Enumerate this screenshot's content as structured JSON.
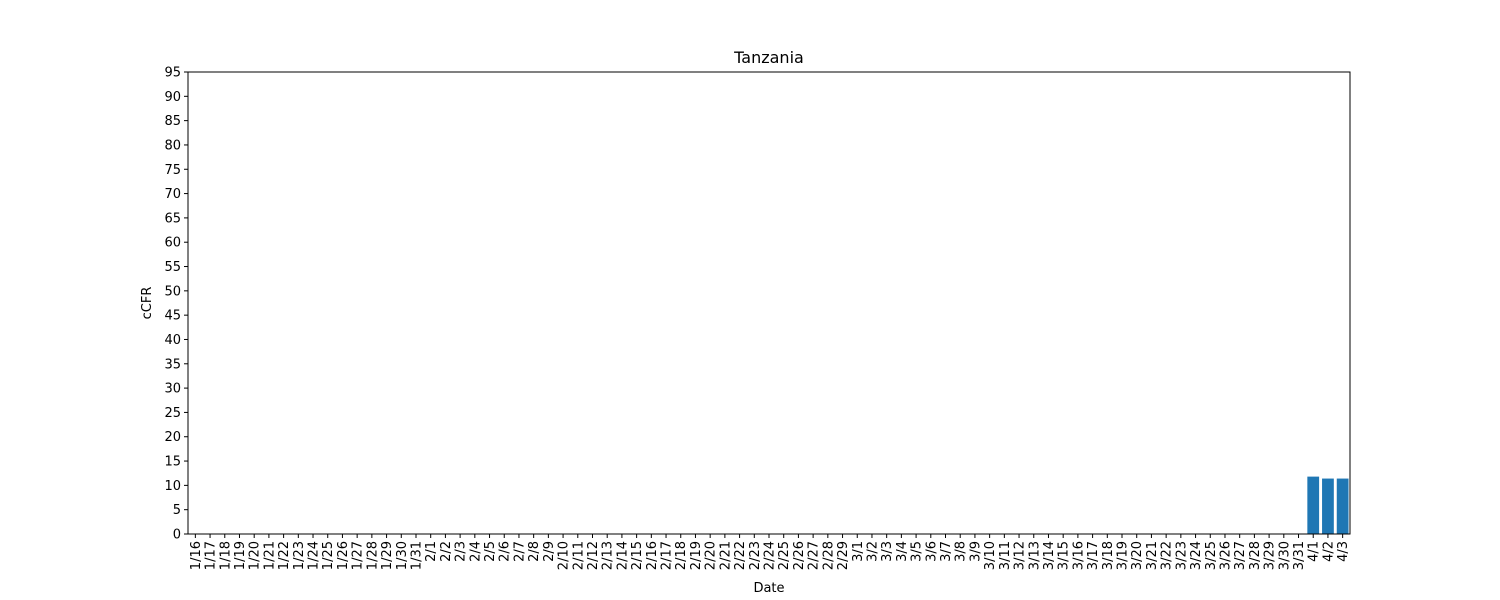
{
  "chart_data": {
    "type": "bar",
    "title": "Tanzania",
    "xlabel": "Date",
    "ylabel": "cCFR",
    "ylim": [
      0,
      95
    ],
    "yticks": [
      0,
      5,
      10,
      15,
      20,
      25,
      30,
      35,
      40,
      45,
      50,
      55,
      60,
      65,
      70,
      75,
      80,
      85,
      90,
      95
    ],
    "grid": false,
    "bar_color": "#1f77b4",
    "categories": [
      "1/16",
      "1/17",
      "1/18",
      "1/19",
      "1/20",
      "1/21",
      "1/22",
      "1/23",
      "1/24",
      "1/25",
      "1/26",
      "1/27",
      "1/28",
      "1/29",
      "1/30",
      "1/31",
      "2/1",
      "2/2",
      "2/3",
      "2/4",
      "2/5",
      "2/6",
      "2/7",
      "2/8",
      "2/9",
      "2/10",
      "2/11",
      "2/12",
      "2/13",
      "2/14",
      "2/15",
      "2/16",
      "2/17",
      "2/18",
      "2/19",
      "2/20",
      "2/21",
      "2/22",
      "2/23",
      "2/24",
      "2/25",
      "2/26",
      "2/27",
      "2/28",
      "2/29",
      "3/1",
      "3/2",
      "3/3",
      "3/4",
      "3/5",
      "3/6",
      "3/7",
      "3/8",
      "3/9",
      "3/10",
      "3/11",
      "3/12",
      "3/13",
      "3/14",
      "3/15",
      "3/16",
      "3/17",
      "3/18",
      "3/19",
      "3/20",
      "3/21",
      "3/22",
      "3/23",
      "3/24",
      "3/25",
      "3/26",
      "3/27",
      "3/28",
      "3/29",
      "3/30",
      "3/31",
      "4/1",
      "4/2",
      "4/3"
    ],
    "values": [
      0,
      0,
      0,
      0,
      0,
      0,
      0,
      0,
      0,
      0,
      0,
      0,
      0,
      0,
      0,
      0,
      0,
      0,
      0,
      0,
      0,
      0,
      0,
      0,
      0,
      0,
      0,
      0,
      0,
      0,
      0,
      0,
      0,
      0,
      0,
      0,
      0,
      0,
      0,
      0,
      0,
      0,
      0,
      0,
      0,
      0,
      0,
      0,
      0,
      0,
      0,
      0,
      0,
      0,
      0,
      0,
      0,
      0,
      0,
      0,
      0,
      0,
      0,
      0,
      0,
      0,
      0,
      0,
      0,
      0,
      0,
      0,
      0,
      0,
      0,
      0,
      11.8,
      11.4,
      11.4
    ]
  }
}
